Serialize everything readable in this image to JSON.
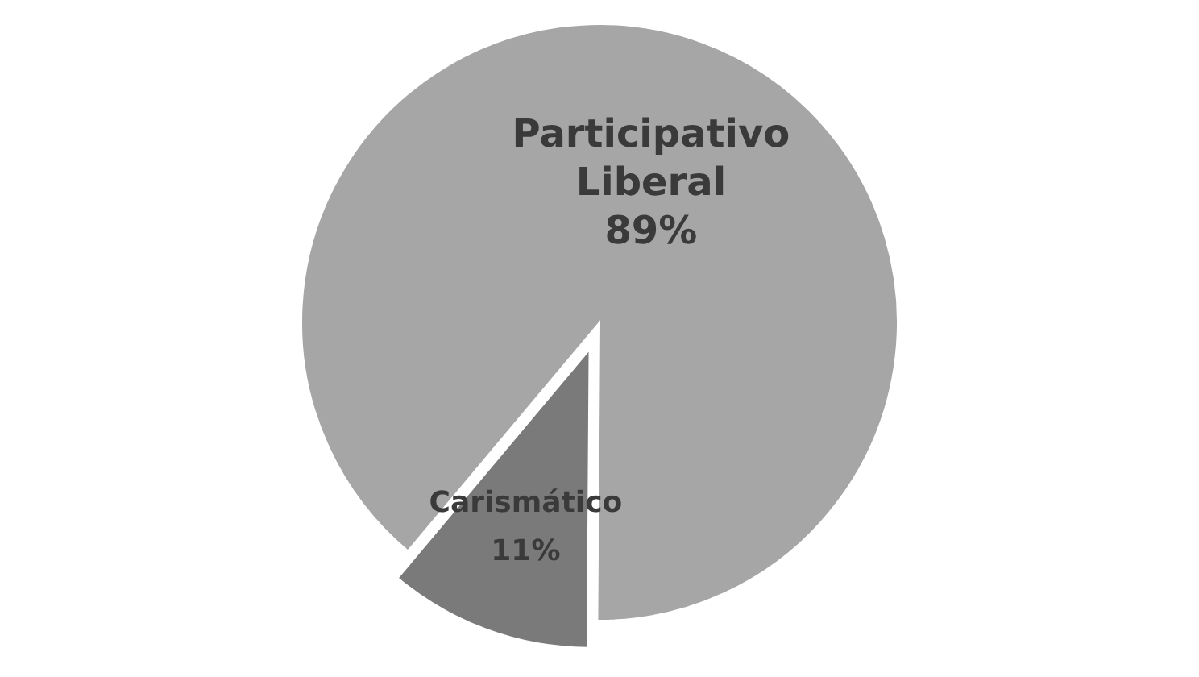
{
  "chart_data": {
    "type": "pie",
    "categories": [
      "Participativo Liberal",
      "Carismático"
    ],
    "values": [
      89,
      11
    ],
    "colors": [
      "#a6a6a6",
      "#7a7a7a"
    ],
    "value_labels": [
      "89%",
      "11%"
    ]
  }
}
